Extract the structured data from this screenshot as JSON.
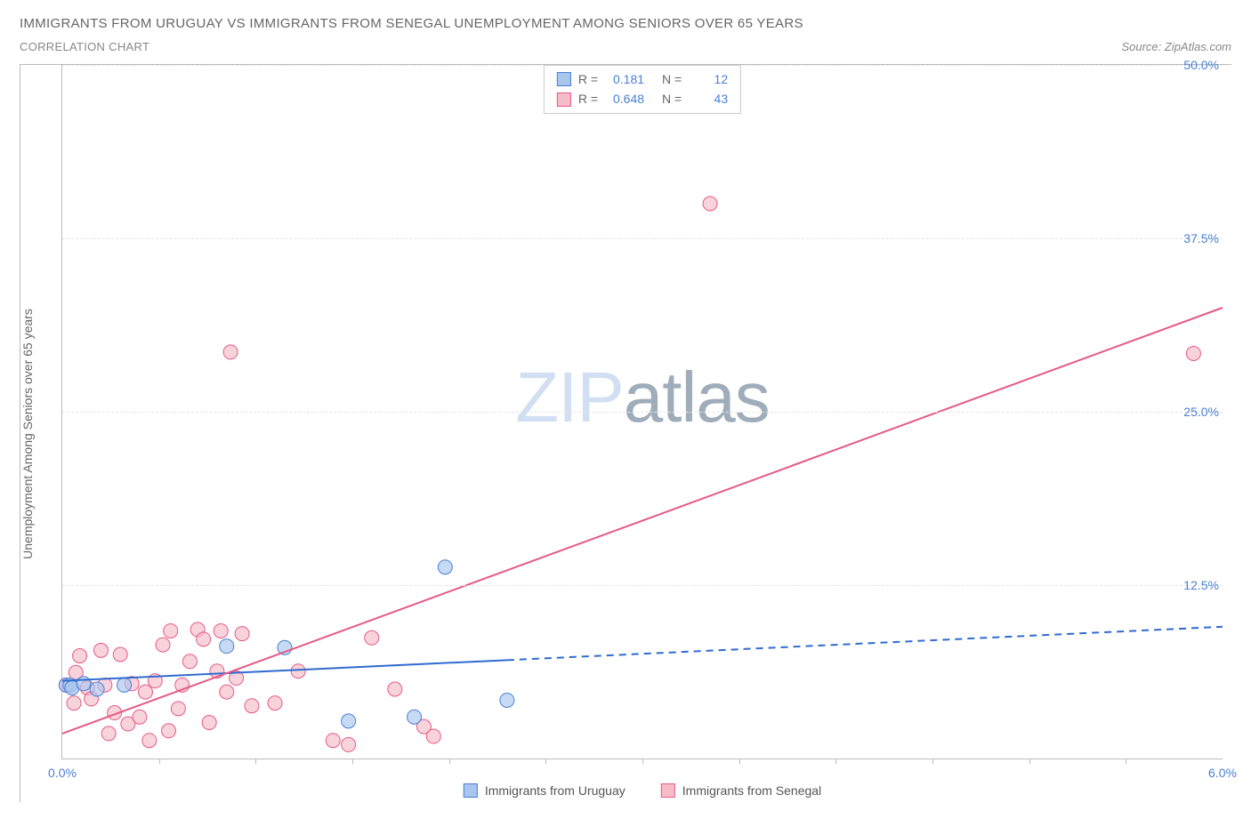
{
  "title": "IMMIGRANTS FROM URUGUAY VS IMMIGRANTS FROM SENEGAL UNEMPLOYMENT AMONG SENIORS OVER 65 YEARS",
  "subtitle": "CORRELATION CHART",
  "source": "Source: ZipAtlas.com",
  "watermark_zip": "ZIP",
  "watermark_atlas": "atlas",
  "ylabel": "Unemployment Among Seniors over 65 years",
  "chart": {
    "type": "scatter",
    "xlim": [
      0.0,
      6.0
    ],
    "ylim": [
      0.0,
      50.0
    ],
    "x_tick_min_label": "0.0%",
    "x_tick_max_label": "6.0%",
    "x_minor_ticks": [
      0.5,
      1.0,
      1.5,
      2.0,
      2.5,
      3.0,
      3.5,
      4.0,
      4.5,
      5.0,
      5.5
    ],
    "y_ticks": [
      12.5,
      25.0,
      37.5,
      50.0
    ],
    "y_tick_labels": [
      "12.5%",
      "25.0%",
      "37.5%",
      "50.0%"
    ],
    "grid_color": "#e5e5e5",
    "axis_color": "#bbbbbb",
    "tick_label_color": "#4a7fd4",
    "background": "#ffffff"
  },
  "series": [
    {
      "name": "Immigrants from Uruguay",
      "fill": "#a9c6ee",
      "stroke": "#4a7fd4",
      "legend_fill": "#a9c6ee",
      "legend_stroke": "#4a7fd4",
      "R": "0.181",
      "N": "12",
      "marker_radius": 8,
      "marker_opacity": 0.65,
      "trend": {
        "y0": 5.6,
        "y1": 9.5,
        "solid_until_x": 2.3,
        "color": "#2f6bd0",
        "width": 2
      },
      "points": [
        [
          0.02,
          5.3
        ],
        [
          0.04,
          5.3
        ],
        [
          0.05,
          5.1
        ],
        [
          0.11,
          5.4
        ],
        [
          0.18,
          5.0
        ],
        [
          0.32,
          5.3
        ],
        [
          0.85,
          8.1
        ],
        [
          1.15,
          8.0
        ],
        [
          1.48,
          2.7
        ],
        [
          1.82,
          3.0
        ],
        [
          1.98,
          13.8
        ],
        [
          2.3,
          4.2
        ]
      ]
    },
    {
      "name": "Immigrants from Senegal",
      "fill": "#f6bcc9",
      "stroke": "#e65a86",
      "legend_fill": "#f6bcc9",
      "legend_stroke": "#e65a86",
      "R": "0.648",
      "N": "43",
      "marker_radius": 8,
      "marker_opacity": 0.65,
      "trend": {
        "y0": 1.8,
        "y1": 32.5,
        "solid_until_x": 6.0,
        "color": "#e65a86",
        "width": 2
      },
      "points": [
        [
          0.02,
          5.3
        ],
        [
          0.06,
          4.0
        ],
        [
          0.07,
          6.2
        ],
        [
          0.09,
          7.4
        ],
        [
          0.13,
          5.1
        ],
        [
          0.15,
          4.3
        ],
        [
          0.2,
          7.8
        ],
        [
          0.22,
          5.3
        ],
        [
          0.24,
          1.8
        ],
        [
          0.27,
          3.3
        ],
        [
          0.3,
          7.5
        ],
        [
          0.34,
          2.5
        ],
        [
          0.36,
          5.4
        ],
        [
          0.4,
          3.0
        ],
        [
          0.43,
          4.8
        ],
        [
          0.45,
          1.3
        ],
        [
          0.48,
          5.6
        ],
        [
          0.52,
          8.2
        ],
        [
          0.55,
          2.0
        ],
        [
          0.56,
          9.2
        ],
        [
          0.6,
          3.6
        ],
        [
          0.62,
          5.3
        ],
        [
          0.66,
          7.0
        ],
        [
          0.7,
          9.3
        ],
        [
          0.73,
          8.6
        ],
        [
          0.76,
          2.6
        ],
        [
          0.8,
          6.3
        ],
        [
          0.82,
          9.2
        ],
        [
          0.85,
          4.8
        ],
        [
          0.87,
          29.3
        ],
        [
          0.9,
          5.8
        ],
        [
          0.93,
          9.0
        ],
        [
          0.98,
          3.8
        ],
        [
          1.1,
          4.0
        ],
        [
          1.22,
          6.3
        ],
        [
          1.4,
          1.3
        ],
        [
          1.48,
          1.0
        ],
        [
          1.6,
          8.7
        ],
        [
          1.72,
          5.0
        ],
        [
          1.87,
          2.3
        ],
        [
          1.92,
          1.6
        ],
        [
          3.35,
          40.0
        ],
        [
          5.85,
          29.2
        ]
      ]
    }
  ],
  "legend_labels": {
    "r_eq": "R =",
    "n_eq": "N ="
  }
}
